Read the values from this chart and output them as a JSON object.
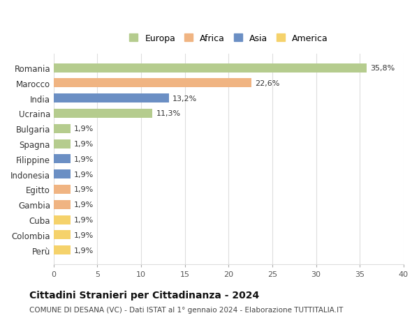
{
  "categories": [
    "Romania",
    "Marocco",
    "India",
    "Ucraina",
    "Bulgaria",
    "Spagna",
    "Filippine",
    "Indonesia",
    "Egitto",
    "Gambia",
    "Cuba",
    "Colombia",
    "Perù"
  ],
  "values": [
    35.8,
    22.6,
    13.2,
    11.3,
    1.9,
    1.9,
    1.9,
    1.9,
    1.9,
    1.9,
    1.9,
    1.9,
    1.9
  ],
  "labels": [
    "35,8%",
    "22,6%",
    "13,2%",
    "11,3%",
    "1,9%",
    "1,9%",
    "1,9%",
    "1,9%",
    "1,9%",
    "1,9%",
    "1,9%",
    "1,9%",
    "1,9%"
  ],
  "continents": [
    "Europa",
    "Africa",
    "Asia",
    "Europa",
    "Europa",
    "Europa",
    "Asia",
    "Asia",
    "Africa",
    "Africa",
    "America",
    "America",
    "America"
  ],
  "colors": {
    "Europa": "#b5cc8e",
    "Africa": "#f0b482",
    "Asia": "#6b8fc4",
    "America": "#f5d26b"
  },
  "legend_order": [
    "Europa",
    "Africa",
    "Asia",
    "America"
  ],
  "title": "Cittadini Stranieri per Cittadinanza - 2024",
  "subtitle": "COMUNE DI DESANA (VC) - Dati ISTAT al 1° gennaio 2024 - Elaborazione TUTTITALIA.IT",
  "xlim": [
    0,
    40
  ],
  "xticks": [
    0,
    5,
    10,
    15,
    20,
    25,
    30,
    35,
    40
  ],
  "background_color": "#ffffff",
  "grid_color": "#dddddd",
  "bar_height": 0.6
}
